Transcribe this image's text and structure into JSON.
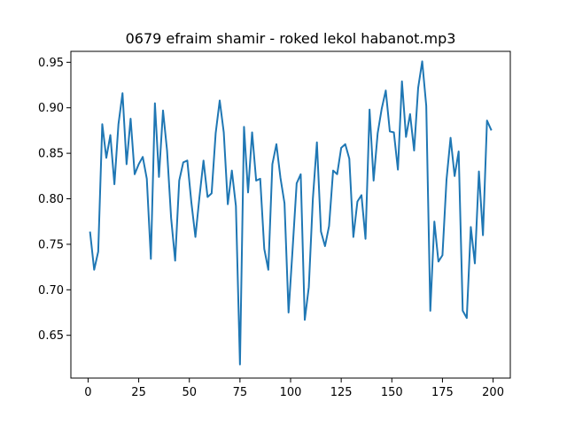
{
  "chart_data": {
    "type": "line",
    "title": "0679 efraim shamir - roked lekol habanot.mp3",
    "xlabel": "",
    "ylabel": "",
    "xlim": [
      -8.5,
      208.5
    ],
    "ylim": [
      0.603,
      0.962
    ],
    "xticks": [
      0,
      25,
      50,
      75,
      100,
      125,
      150,
      175,
      200
    ],
    "yticks": [
      0.65,
      0.7,
      0.75,
      0.8,
      0.85,
      0.9,
      0.95
    ],
    "ytick_labels": [
      "0.65",
      "0.70",
      "0.75",
      "0.80",
      "0.85",
      "0.90",
      "0.95"
    ],
    "grid": false,
    "color": "#1f77b4",
    "series": [
      {
        "x": [
          1,
          3,
          5,
          7,
          9,
          11,
          13,
          15,
          17,
          19,
          21,
          23,
          25,
          27,
          29,
          31,
          33,
          35,
          37,
          39,
          41,
          43,
          45,
          47,
          49,
          51,
          53,
          55,
          57,
          59,
          61,
          63,
          65,
          67,
          69,
          71,
          73,
          75,
          77,
          79,
          81,
          83,
          85,
          87,
          89,
          91,
          93,
          95,
          97,
          99,
          101,
          103,
          105,
          107,
          109,
          111,
          113,
          115,
          117,
          119,
          121,
          123,
          125,
          127,
          129,
          131,
          133,
          135,
          137,
          139,
          141,
          143,
          145,
          147,
          149,
          151,
          153,
          155,
          157,
          159,
          161,
          163,
          165,
          167,
          169,
          171,
          173,
          175,
          177,
          179,
          181,
          183,
          185,
          187,
          189,
          191,
          193,
          195,
          197,
          199
        ],
        "y": [
          0.763,
          0.722,
          0.742,
          0.882,
          0.845,
          0.87,
          0.816,
          0.882,
          0.916,
          0.838,
          0.888,
          0.827,
          0.838,
          0.846,
          0.822,
          0.734,
          0.905,
          0.824,
          0.897,
          0.853,
          0.779,
          0.732,
          0.82,
          0.84,
          0.842,
          0.796,
          0.758,
          0.802,
          0.842,
          0.802,
          0.806,
          0.872,
          0.908,
          0.873,
          0.794,
          0.831,
          0.792,
          0.618,
          0.879,
          0.807,
          0.873,
          0.82,
          0.822,
          0.745,
          0.722,
          0.838,
          0.86,
          0.823,
          0.795,
          0.675,
          0.745,
          0.817,
          0.827,
          0.667,
          0.703,
          0.8,
          0.862,
          0.764,
          0.748,
          0.77,
          0.831,
          0.827,
          0.856,
          0.86,
          0.844,
          0.758,
          0.797,
          0.804,
          0.756,
          0.898,
          0.82,
          0.872,
          0.899,
          0.919,
          0.874,
          0.873,
          0.832,
          0.929,
          0.868,
          0.893,
          0.853,
          0.922,
          0.951,
          0.902,
          0.677,
          0.775,
          0.731,
          0.738,
          0.821,
          0.867,
          0.825,
          0.852,
          0.677,
          0.669,
          0.769,
          0.729,
          0.83,
          0.76,
          0.886,
          0.876
        ]
      }
    ]
  }
}
